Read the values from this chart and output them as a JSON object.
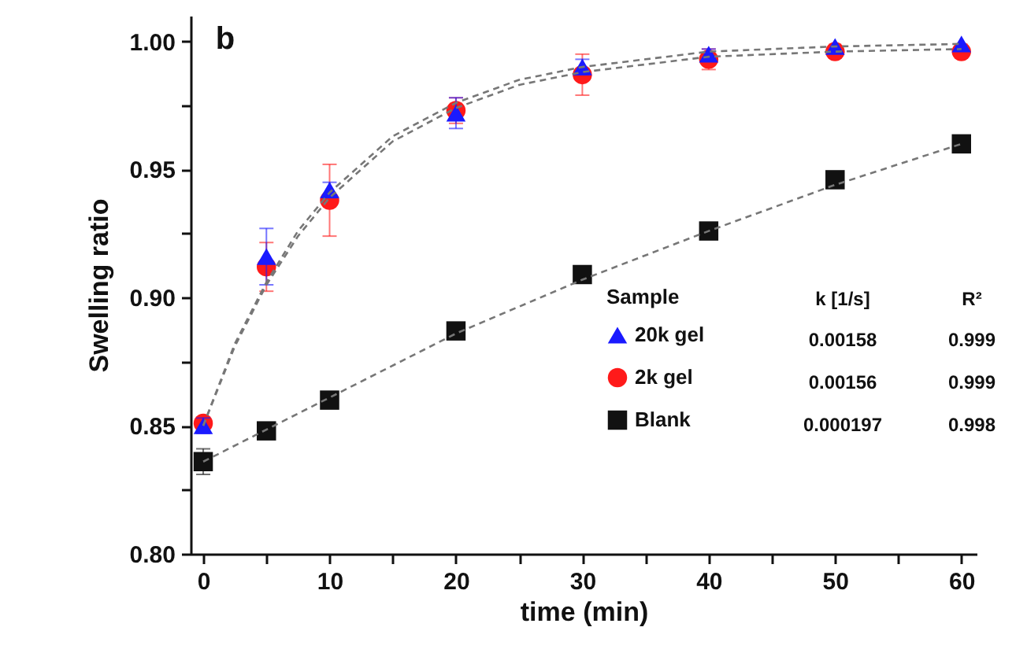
{
  "chart_data": {
    "type": "scatter",
    "xlabel": "time (min)",
    "ylabel": "Swelling ratio",
    "xlim": [
      -1,
      61.2
    ],
    "ylim": [
      0.8,
      1.01
    ],
    "xticks": [
      0,
      {
        "value": 5,
        "label": null
      },
      10,
      {
        "value": 15,
        "label": null
      },
      20,
      {
        "value": 25,
        "label": null
      },
      30,
      {
        "value": 35,
        "label": null
      },
      40,
      {
        "value": 45,
        "label": null
      },
      50,
      {
        "value": 55,
        "label": null
      },
      60
    ],
    "yticks": [
      {
        "value": 0.8,
        "label": "0.80"
      },
      {
        "value": 0.825,
        "label": null
      },
      {
        "value": 0.85,
        "label": "0.85"
      },
      {
        "value": 0.875,
        "label": null
      },
      {
        "value": 0.9,
        "label": "0.90"
      },
      {
        "value": 0.925,
        "label": null
      },
      {
        "value": 0.95,
        "label": "0.95"
      },
      {
        "value": 0.975,
        "label": null
      },
      {
        "value": 1.0,
        "label": "1.00"
      }
    ],
    "legend": "right",
    "legend_title": "Sample",
    "annotations": [
      "b",
      "k [1/s]",
      "R²",
      "0.00158",
      "0.999",
      "0.00156",
      "0.999",
      "0.000197",
      "0.998"
    ],
    "x": [
      0,
      5,
      10,
      20,
      30,
      40,
      50,
      60
    ],
    "series": [
      {
        "type": "line",
        "color": "#777777",
        "line_style": "dashed",
        "x": [
          0,
          2.5,
          5,
          7.5,
          10,
          15,
          20,
          25,
          30,
          40,
          50,
          60
        ],
        "values": [
          0.85,
          0.882,
          0.906,
          0.926,
          0.941,
          0.963,
          0.976,
          0.985,
          0.99,
          0.996,
          0.998,
          0.999
        ]
      },
      {
        "type": "line",
        "color": "#777777",
        "line_style": "dashed",
        "x": [
          0,
          2.5,
          5,
          7.5,
          10,
          15,
          20,
          25,
          30,
          40,
          50,
          60
        ],
        "values": [
          0.85,
          0.881,
          0.905,
          0.924,
          0.939,
          0.961,
          0.974,
          0.983,
          0.988,
          0.994,
          0.996,
          0.997
        ]
      },
      {
        "type": "line",
        "color": "#777777",
        "line_style": "dashed",
        "x": [
          0,
          10,
          20,
          30,
          40,
          50,
          60
        ],
        "values": [
          0.836,
          0.861,
          0.886,
          0.907,
          0.926,
          0.944,
          0.96
        ]
      },
      {
        "name": "20k gel",
        "color": "#1a1aff",
        "marker": "triangle",
        "values": [
          0.85,
          0.916,
          0.942,
          0.972,
          0.99,
          0.995,
          0.998,
          0.999
        ],
        "errors": [
          0.003,
          0.011,
          0.003,
          0.006,
          0.003,
          0.002,
          null,
          null
        ]
      },
      {
        "name": "2k gel",
        "color": "#ff1a1a",
        "marker": "circle",
        "values": [
          0.851,
          0.912,
          0.938,
          0.973,
          0.987,
          0.993,
          0.996,
          0.996
        ],
        "errors": [
          null,
          0.0095,
          0.014,
          0.005,
          0.008,
          0.004,
          null,
          null
        ]
      },
      {
        "name": "Blank",
        "color": "#111111",
        "marker": "square",
        "values": [
          0.836,
          0.848,
          0.86,
          0.887,
          0.909,
          0.926,
          0.946,
          0.96
        ],
        "errors": [
          0.005,
          null,
          null,
          0.003,
          null,
          0.003,
          null,
          null
        ]
      }
    ]
  }
}
